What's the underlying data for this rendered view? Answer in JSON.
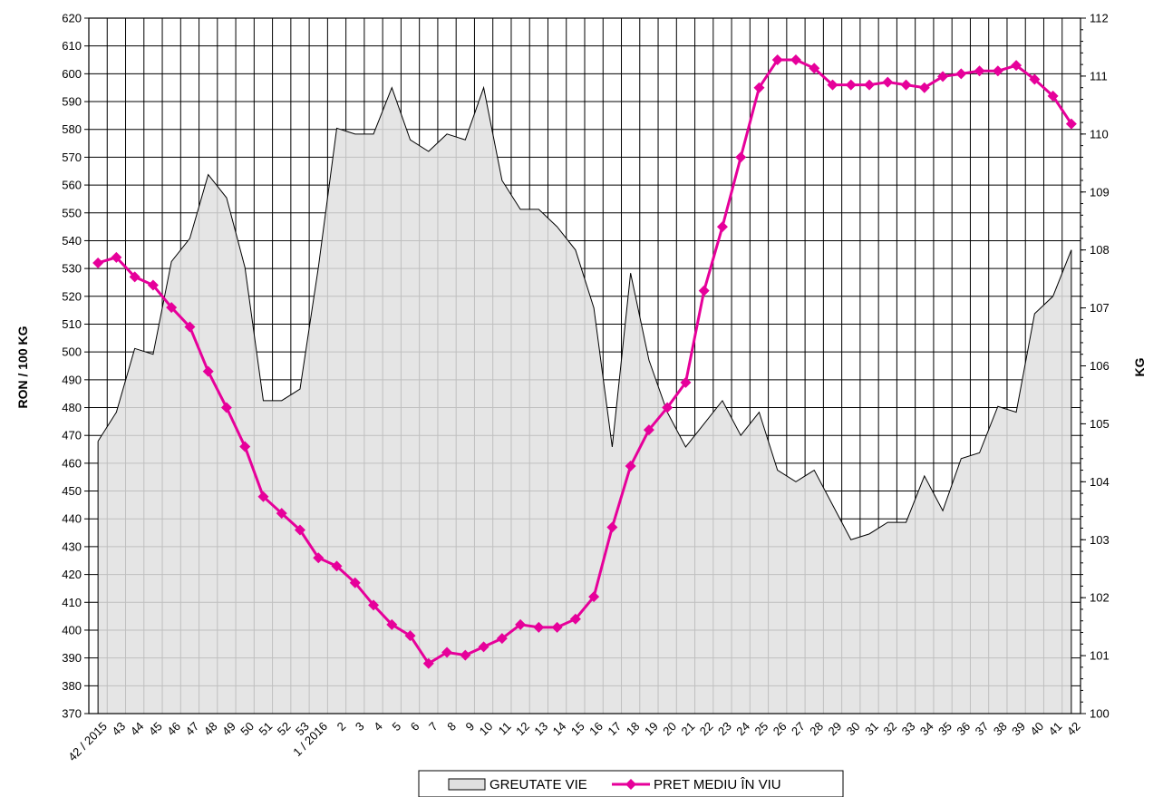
{
  "chart_data": {
    "type": "line",
    "categories": [
      "42 / 2015",
      "43",
      "44",
      "45",
      "46",
      "47",
      "48",
      "49",
      "50",
      "51",
      "52",
      "53",
      "1 / 2016",
      "2",
      "3",
      "4",
      "5",
      "6",
      "7",
      "8",
      "9",
      "10",
      "11",
      "12",
      "13",
      "14",
      "15",
      "16",
      "17",
      "18",
      "19",
      "20",
      "21",
      "22",
      "23",
      "24",
      "25",
      "26",
      "27",
      "28",
      "29",
      "30",
      "31",
      "32",
      "33",
      "34",
      "35",
      "36",
      "37",
      "38",
      "39",
      "40",
      "41",
      "42"
    ],
    "y_left": {
      "label": "RON / 100 KG",
      "min": 370,
      "max": 620,
      "step": 10
    },
    "y_right": {
      "label": "KG",
      "min": 100,
      "max": 112,
      "step": 1
    },
    "grid": true,
    "legend_position": "bottom",
    "series": [
      {
        "name": "GREUTATE VIE",
        "type": "area",
        "axis": "right",
        "color": "#e0e0e0",
        "line_color": "#000000",
        "values": [
          104.7,
          105.2,
          106.3,
          106.2,
          107.8,
          108.2,
          109.3,
          108.9,
          107.7,
          105.4,
          105.4,
          105.6,
          107.7,
          110.1,
          110.0,
          110.0,
          110.8,
          109.9,
          109.7,
          110.0,
          109.9,
          110.8,
          109.2,
          108.7,
          108.7,
          108.4,
          108.0,
          107.0,
          104.6,
          107.6,
          106.1,
          105.2,
          104.6,
          105.0,
          105.4,
          104.8,
          105.2,
          104.2,
          104.0,
          104.2,
          103.6,
          103.0,
          103.1,
          103.3,
          103.3,
          104.1,
          103.5,
          104.4,
          104.5,
          105.3,
          105.2,
          106.9,
          107.2,
          108.0
        ]
      },
      {
        "name": "PRET MEDIU ÎN VIU",
        "type": "line",
        "axis": "left",
        "color": "#e6009a",
        "marker": "diamond",
        "values": [
          532,
          534,
          527,
          524,
          516,
          509,
          493,
          480,
          466,
          448,
          442,
          436,
          426,
          423,
          417,
          409,
          402,
          398,
          388,
          392,
          391,
          394,
          397,
          402,
          401,
          401,
          404,
          412,
          437,
          459,
          472,
          480,
          489,
          522,
          545,
          570,
          595,
          605,
          605,
          602,
          596,
          596,
          596,
          597,
          596,
          595,
          599,
          600,
          601,
          601,
          603,
          598,
          592,
          582
        ]
      }
    ]
  }
}
